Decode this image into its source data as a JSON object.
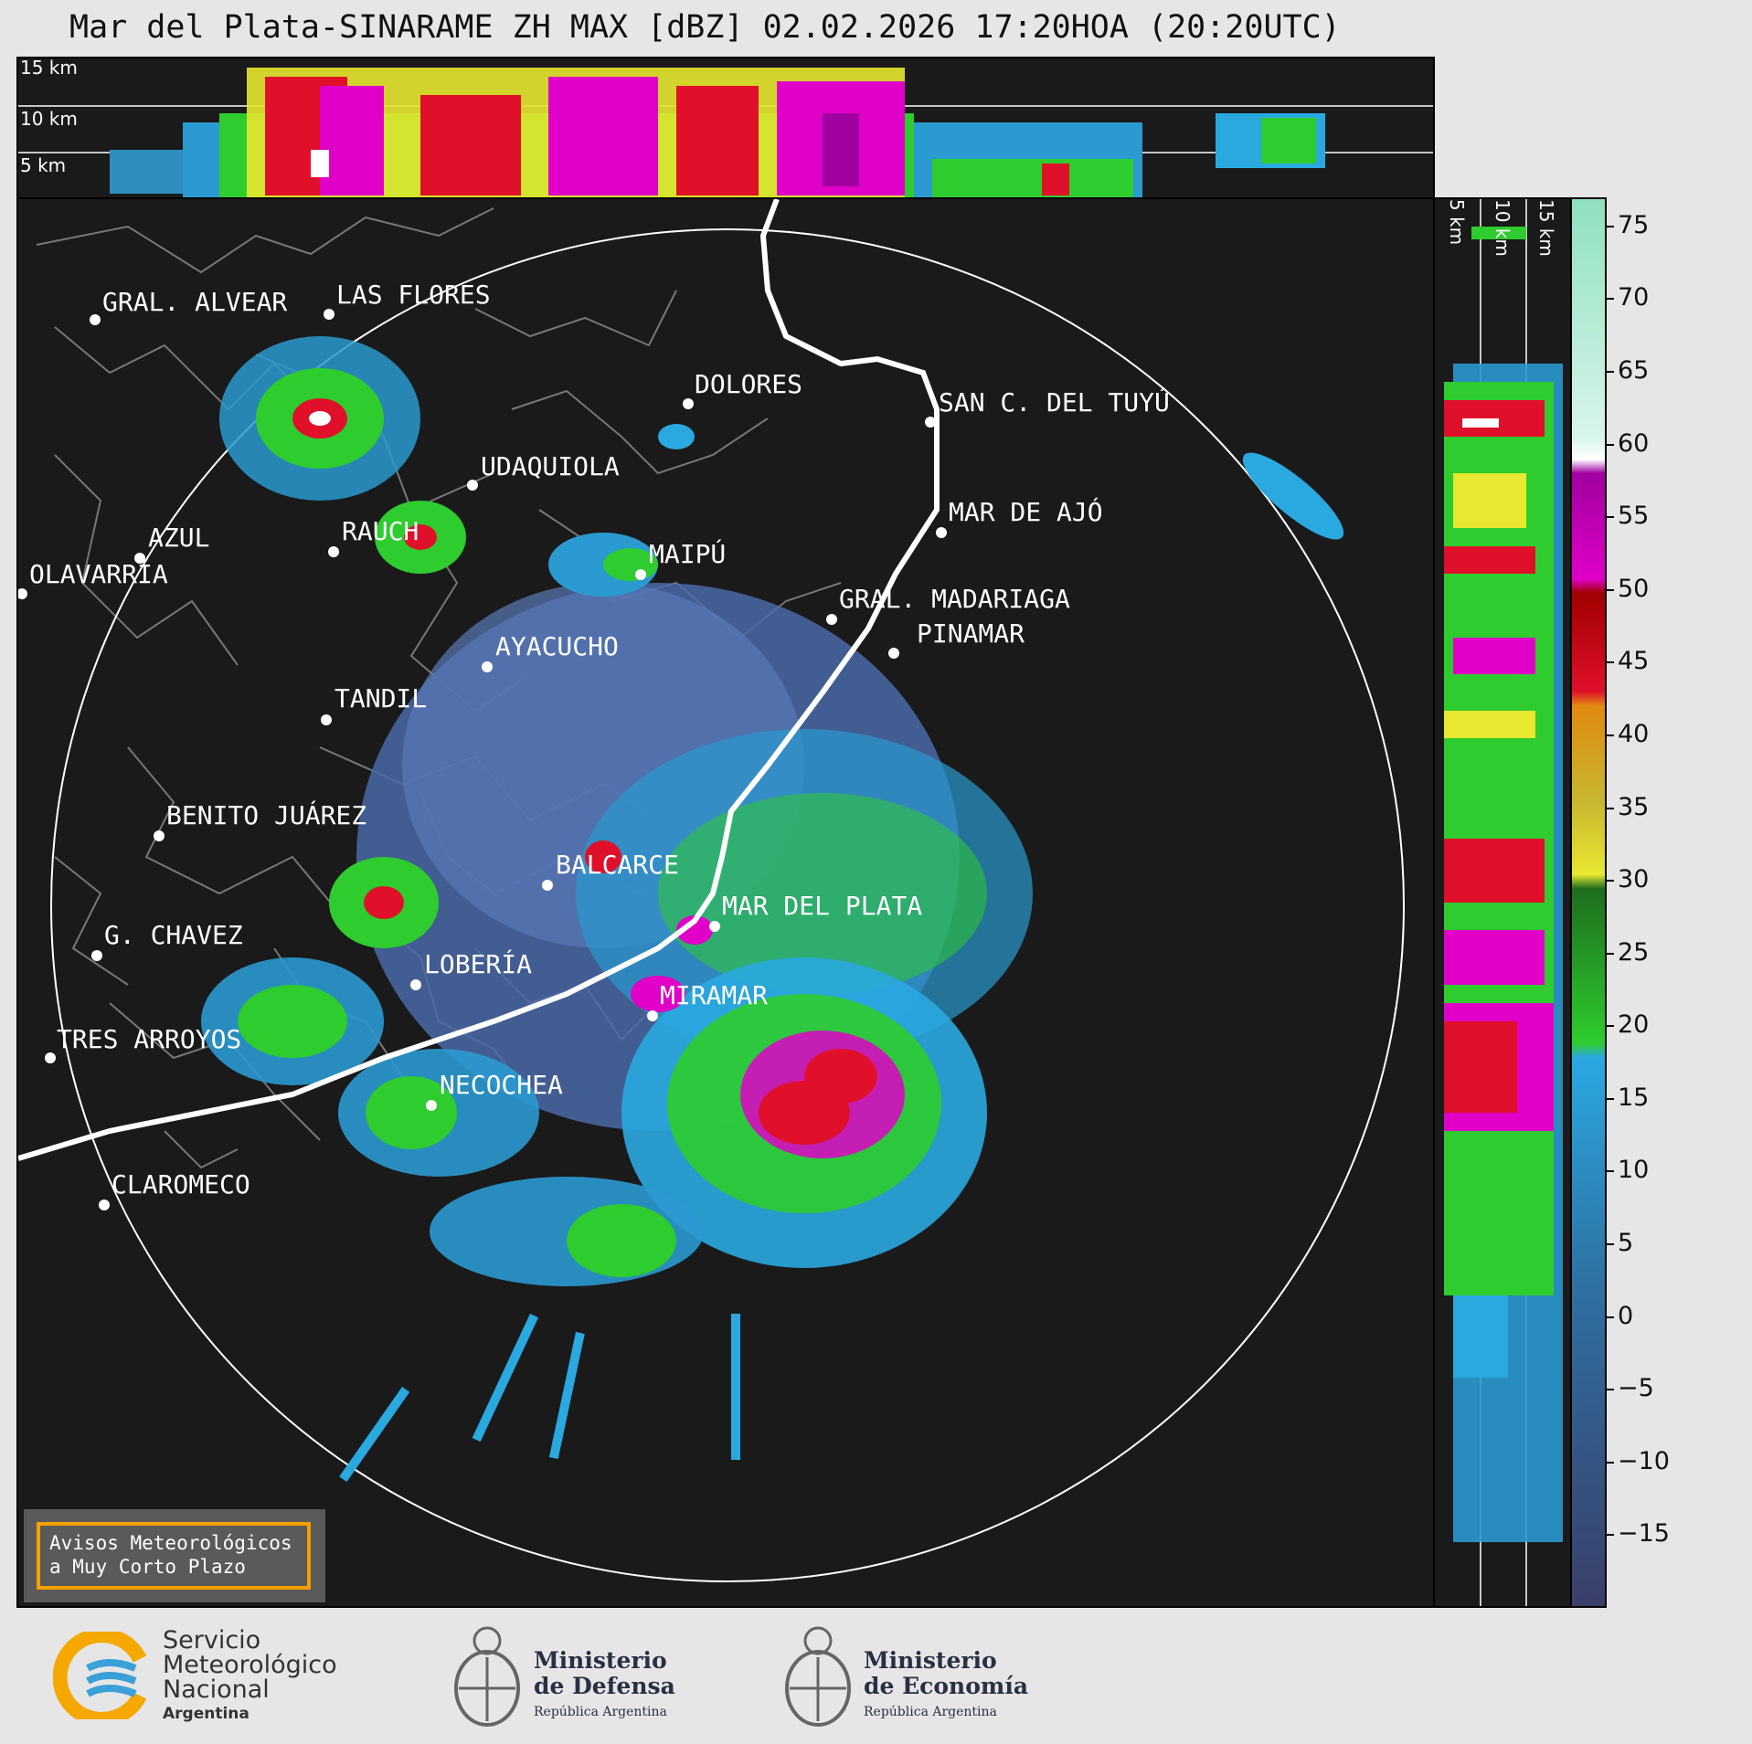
{
  "title": "Mar del Plata-SINARAME ZH MAX [dBZ] 02.02.2026 17:20HOA (20:20UTC)",
  "altitude_labels": [
    "15 km",
    "10 km",
    "5 km"
  ],
  "cities": [
    {
      "name": "GRAL. ALVEAR"
    },
    {
      "name": "LAS FLORES"
    },
    {
      "name": "DOLORES"
    },
    {
      "name": "SAN C. DEL TUYÚ"
    },
    {
      "name": "UDAQUIOLA"
    },
    {
      "name": "MAR DE AJÓ"
    },
    {
      "name": "AZUL"
    },
    {
      "name": "RAUCH"
    },
    {
      "name": "MAIPÚ"
    },
    {
      "name": "OLAVARRÍA"
    },
    {
      "name": "GRAL. MADARIAGA"
    },
    {
      "name": "PINAMAR"
    },
    {
      "name": "AYACUCHO"
    },
    {
      "name": "TANDIL"
    },
    {
      "name": "BENITO JUÁREZ"
    },
    {
      "name": "BALCARCE"
    },
    {
      "name": "MAR DEL PLATA"
    },
    {
      "name": "G. CHAVEZ"
    },
    {
      "name": "LOBERÍA"
    },
    {
      "name": "MIRAMAR"
    },
    {
      "name": "TRES ARROYOS"
    },
    {
      "name": "NECOCHEA"
    },
    {
      "name": "CLAROMECO"
    }
  ],
  "colorbar": {
    "ticks": [
      "75",
      "70",
      "65",
      "60",
      "55",
      "50",
      "45",
      "40",
      "35",
      "30",
      "25",
      "20",
      "15",
      "10",
      "5",
      "0",
      "−5",
      "−10",
      "−15"
    ],
    "range": [
      -20,
      77
    ],
    "colors": {
      "low": "#3a3f6a",
      "mid_blue": "#2f6ea0",
      "light_blue": "#2aa8e0",
      "green": "#2ecc2e",
      "dark_green": "#1e6e1e",
      "yellow": "#e8e830",
      "olive": "#c8b830",
      "orange": "#e08a10",
      "red": "#e0102a",
      "dark_red": "#a00000",
      "magenta": "#e000c8",
      "purple": "#a000a0",
      "white": "#ffffff",
      "mint": "#8fe0c0"
    }
  },
  "avisos": {
    "line1": "Avisos Meteorológicos",
    "line2": "a Muy Corto Plazo"
  },
  "logos": {
    "smn_line1": "Servicio",
    "smn_line2": "Meteorológico",
    "smn_line3": "Nacional",
    "smn_line4": "Argentina",
    "defensa_line1": "Ministerio",
    "defensa_line2": "de Defensa",
    "defensa_line3": "República Argentina",
    "economia_line1": "Ministerio",
    "economia_line2": "de Economía",
    "economia_line3": "República Argentina"
  }
}
